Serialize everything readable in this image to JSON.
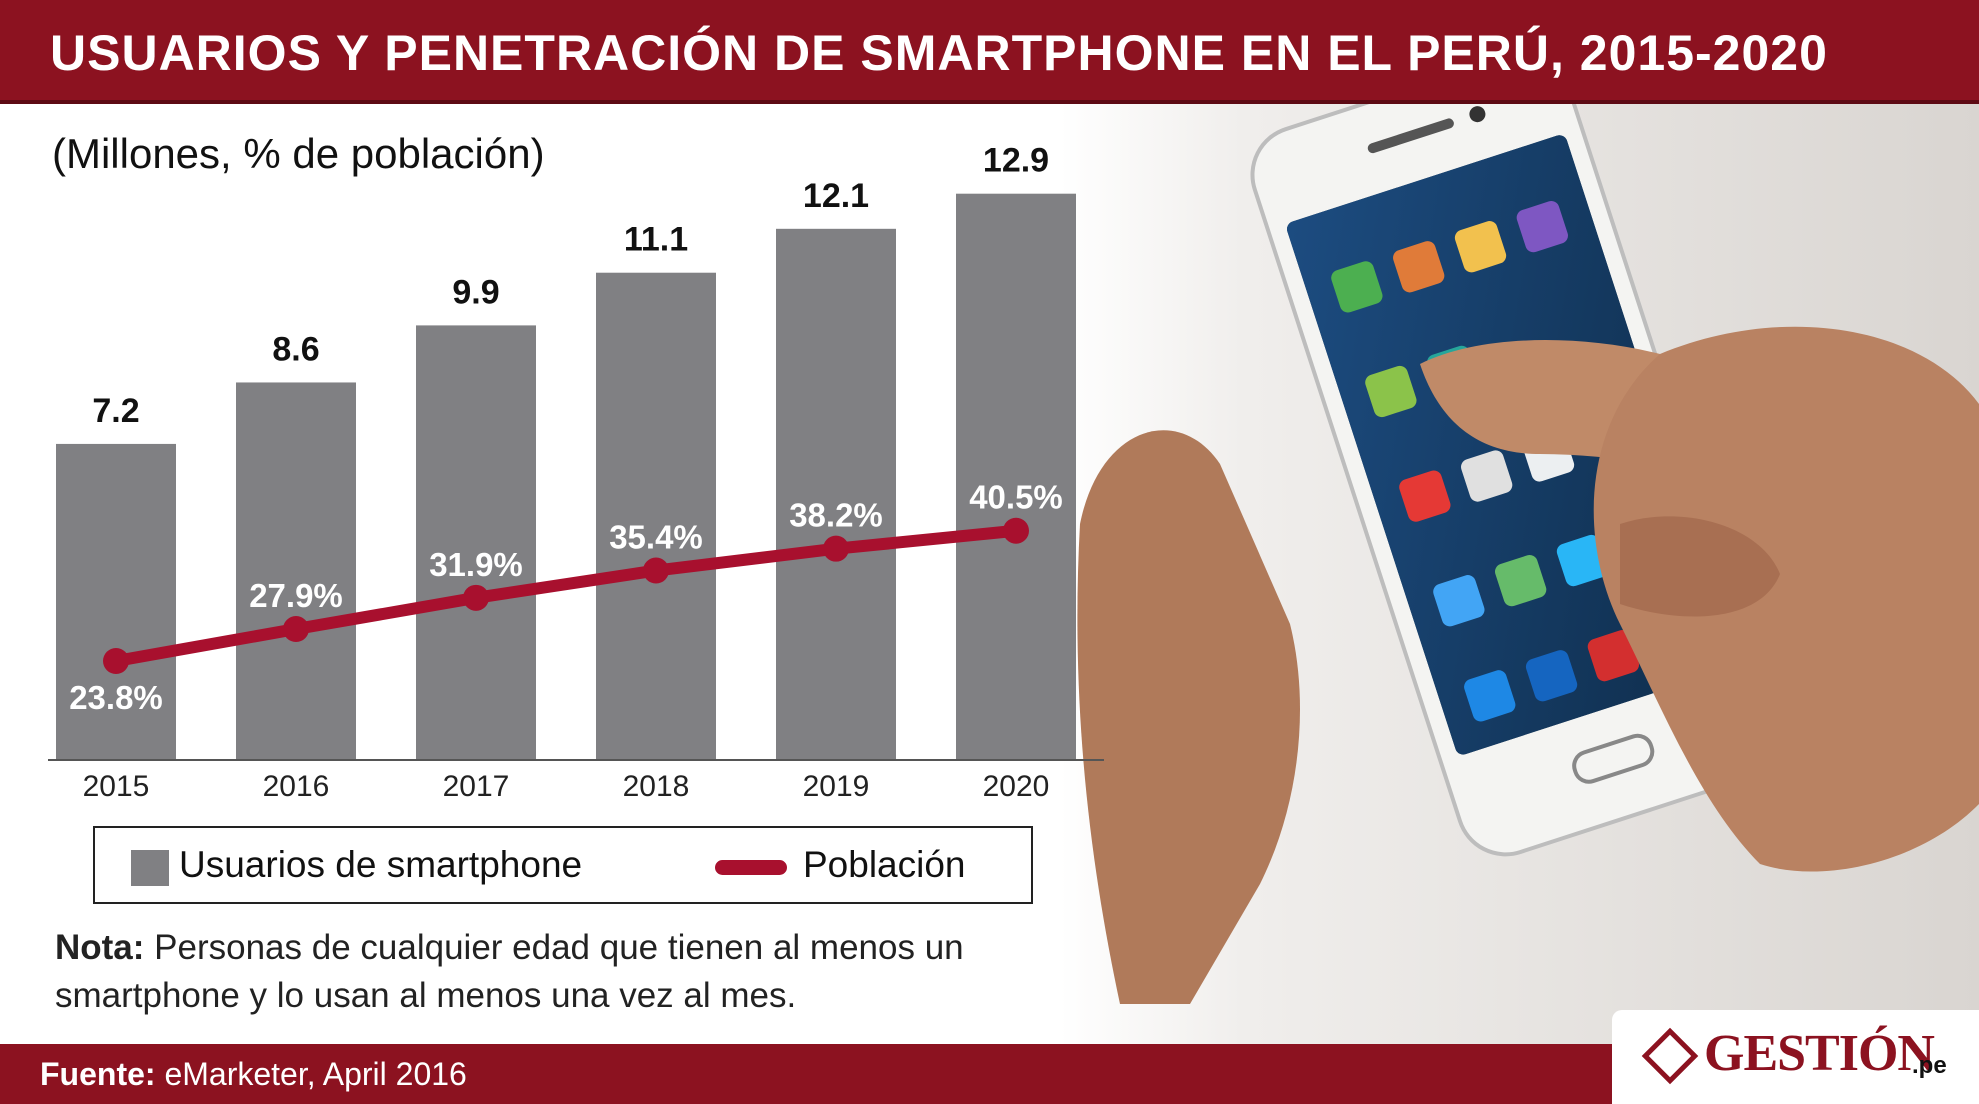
{
  "header": {
    "title": "USUARIOS Y PENETRACIÓN DE SMARTPHONE EN EL PERÚ, 2015-2020"
  },
  "subtitle": "(Millones, % de población)",
  "colors": {
    "brand": "#8c1220",
    "bar": "#808083",
    "line": "#a8102e"
  },
  "chart_data": {
    "type": "bar",
    "categories": [
      "2015",
      "2016",
      "2017",
      "2018",
      "2019",
      "2020"
    ],
    "series": [
      {
        "name": "Usuarios de smartphone",
        "type": "bar",
        "values": [
          7.2,
          8.6,
          9.9,
          11.1,
          12.1,
          12.9
        ],
        "labels": [
          "7.2",
          "8.6",
          "9.9",
          "11.1",
          "12.1",
          "12.9"
        ]
      },
      {
        "name": "Población",
        "type": "line",
        "values": [
          23.8,
          27.9,
          31.9,
          35.4,
          38.2,
          40.5
        ],
        "labels": [
          "23.8%",
          "27.9%",
          "31.9%",
          "35.4%",
          "38.2%",
          "40.5%"
        ]
      }
    ],
    "title": "USUARIOS Y PENETRACIÓN DE SMARTPHONE EN EL PERÚ, 2015-2020",
    "subtitle": "(Millones, % de población)",
    "grid": false,
    "legend": "bottom"
  },
  "legend": {
    "bars_label": "Usuarios de smartphone",
    "line_label": "Población"
  },
  "note": {
    "label": "Nota:",
    "text": " Personas de cualquier edad que tienen al menos un smartphone y lo usan al menos una vez al mes."
  },
  "footer": {
    "label": "Fuente:",
    "text": " eMarketer, April 2016"
  },
  "logo": {
    "icon": "gestion-logo-icon",
    "text": "GESTIÓN",
    "suffix": ".pe"
  }
}
